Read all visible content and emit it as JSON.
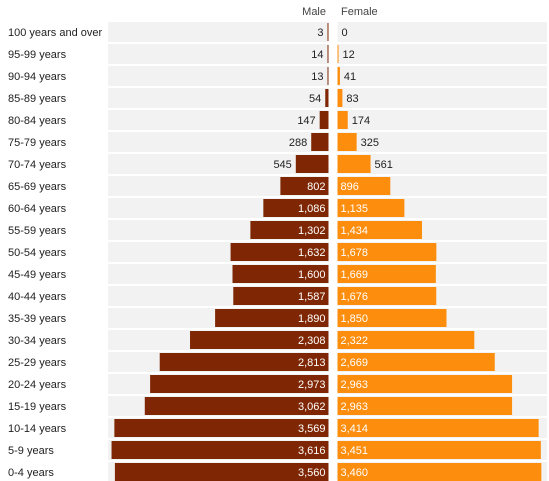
{
  "chart_data": {
    "type": "bar",
    "orientation": "horizontal-diverging",
    "categories": [
      "100 years and over",
      "95-99 years",
      "90-94 years",
      "85-89 years",
      "80-84 years",
      "75-79 years",
      "70-74 years",
      "65-69 years",
      "60-64 years",
      "55-59 years",
      "50-54 years",
      "45-49 years",
      "40-44 years",
      "35-39 years",
      "30-34 years",
      "25-29 years",
      "20-24 years",
      "15-19 years",
      "10-14 years",
      "5-9 years",
      "0-4 years"
    ],
    "series": [
      {
        "name": "Male",
        "color": "#7f2704",
        "values": [
          3,
          14,
          13,
          54,
          147,
          288,
          545,
          802,
          1086,
          1302,
          1632,
          1600,
          1587,
          1890,
          2308,
          2813,
          2973,
          3062,
          3569,
          3616,
          3560
        ]
      },
      {
        "name": "Female",
        "color": "#fd8d0c",
        "values": [
          0,
          12,
          41,
          83,
          174,
          325,
          561,
          896,
          1135,
          1434,
          1678,
          1669,
          1676,
          1850,
          2322,
          2669,
          2963,
          2963,
          3414,
          3451,
          3460
        ]
      }
    ],
    "value_labels": {
      "Male": [
        "3",
        "14",
        "13",
        "54",
        "147",
        "288",
        "545",
        "802",
        "1,086",
        "1,302",
        "1,632",
        "1,600",
        "1,587",
        "1,890",
        "2,308",
        "2,813",
        "2,973",
        "3,062",
        "3,569",
        "3,616",
        "3,560"
      ],
      "Female": [
        "0",
        "12",
        "41",
        "83",
        "174",
        "325",
        "561",
        "896",
        "1,135",
        "1,434",
        "1,678",
        "1,669",
        "1,676",
        "1,850",
        "2,322",
        "2,669",
        "2,963",
        "2,963",
        "3,414",
        "3,451",
        "3,460"
      ]
    },
    "headers": {
      "male": "Male",
      "female": "Female"
    },
    "xlim": [
      0,
      3700
    ],
    "track_color": "#f2f2f2",
    "grid": false,
    "legend": "none"
  }
}
